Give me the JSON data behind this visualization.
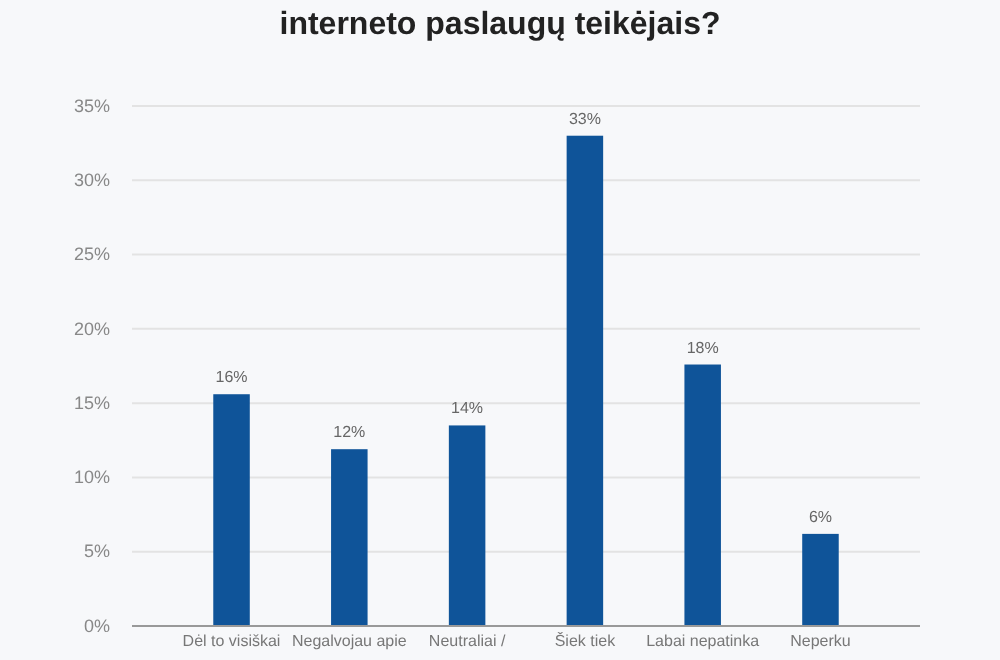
{
  "chart_data": {
    "type": "bar",
    "title": "interneto paslaugų teikėjais?",
    "categories": [
      "Dėl to visiškai",
      "Negalvojau apie",
      "Neutraliai /",
      "Šiek tiek",
      "Labai nepatinka",
      "Neperku"
    ],
    "values": [
      15.6,
      11.9,
      13.5,
      33,
      17.6,
      6.2
    ],
    "value_labels": [
      "16%",
      "12%",
      "14%",
      "33%",
      "18%",
      "6%"
    ],
    "color": "#0f5499",
    "ylim": [
      0,
      35
    ],
    "yticks": [
      {
        "value": 0,
        "label": "0%"
      },
      {
        "value": 5,
        "label": "5%"
      },
      {
        "value": 10,
        "label": "10%"
      },
      {
        "value": 15,
        "label": "15%"
      },
      {
        "value": 20,
        "label": "20%"
      },
      {
        "value": 25,
        "label": "25%"
      },
      {
        "value": 30,
        "label": "30%"
      },
      {
        "value": 35,
        "label": "35%"
      }
    ],
    "grid": "y"
  }
}
